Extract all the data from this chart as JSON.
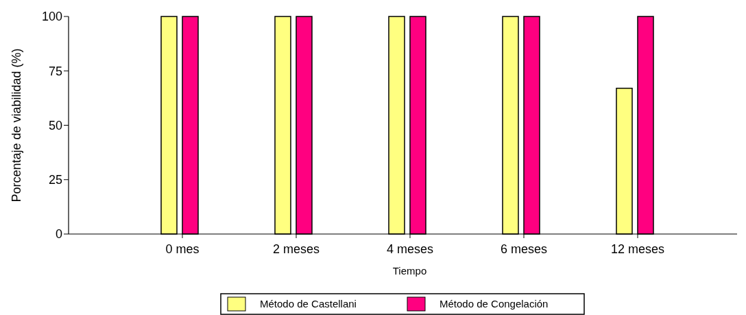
{
  "chart_data": {
    "type": "bar",
    "xlabel": "Tiempo",
    "ylabel": "Porcentaje de viabilidad (%)",
    "categories": [
      "0 mes",
      "2 meses",
      "4 meses",
      "6 meses",
      "12 meses"
    ],
    "series": [
      {
        "name": "Método de Castellani",
        "color": "#ffff80",
        "values": [
          100,
          100,
          100,
          100,
          67
        ]
      },
      {
        "name": "Método de Congelación",
        "color": "#ff0080",
        "values": [
          100,
          100,
          100,
          100,
          100
        ]
      }
    ],
    "ylim": [
      0,
      100
    ],
    "yticks": [
      0,
      25,
      50,
      75,
      100
    ],
    "grid": false,
    "legend": "bottom"
  }
}
